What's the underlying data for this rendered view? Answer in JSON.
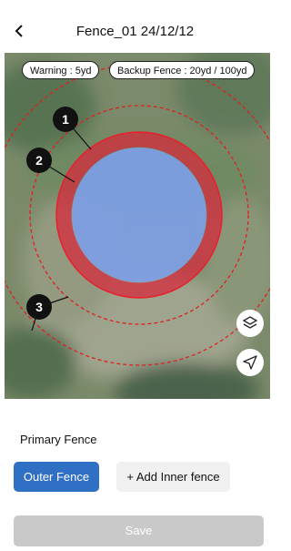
{
  "header": {
    "title": "Fence_01 24/12/12"
  },
  "chips": [
    "Warning : 5yd",
    "Backup Fence : 20yd / 100yd"
  ],
  "callouts": [
    "1",
    "2",
    "3"
  ],
  "section": {
    "label": "Primary Fence"
  },
  "buttons": {
    "outer": "Outer Fence",
    "inner": "+ Add Inner fence",
    "save": "Save"
  }
}
